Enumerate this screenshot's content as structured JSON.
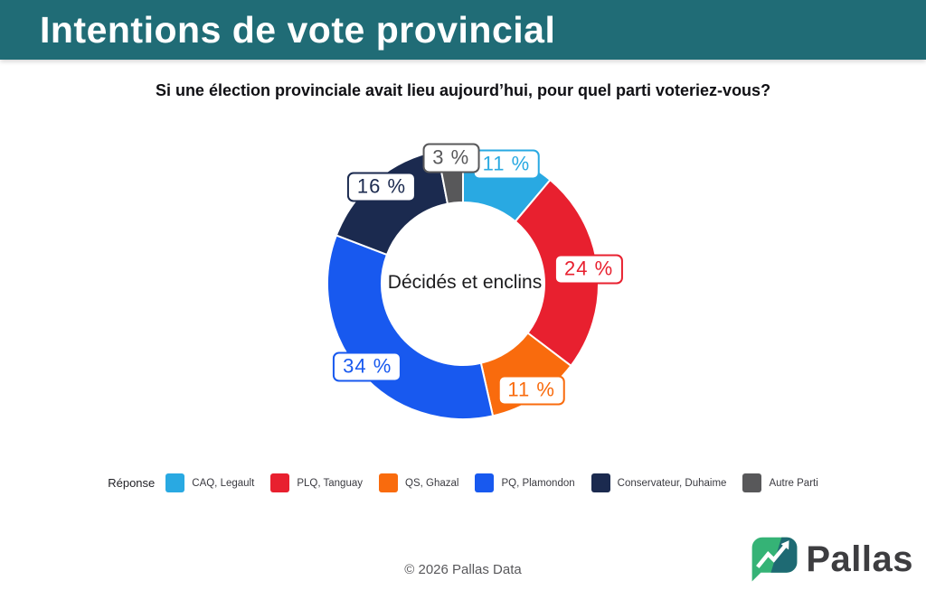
{
  "header": {
    "title": "Intentions de vote provincial",
    "bg_color": "#206C76"
  },
  "question": "Si une élection provinciale avait lieu aujourd’hui, pour quel parti voteriez-vous?",
  "chart_data": {
    "type": "pie",
    "subtype": "donut",
    "center_label": "Décidés et enclins",
    "legend_title": "Réponse",
    "legend_position": "bottom",
    "start_angle_deg": 0,
    "direction": "clockwise",
    "slices": [
      {
        "label": "CAQ, Legault",
        "value": 11,
        "display": "11 %",
        "color": "#29A9E2"
      },
      {
        "label": "PLQ, Tanguay",
        "value": 24,
        "display": "24 %",
        "color": "#E8202F"
      },
      {
        "label": "QS, Ghazal",
        "value": 11,
        "display": "11 %",
        "color": "#F96B0D"
      },
      {
        "label": "PQ, Plamondon",
        "value": 34,
        "display": "34 %",
        "color": "#1859EF"
      },
      {
        "label": "Conservateur, Duhaime",
        "value": 16,
        "display": "16 %",
        "color": "#1B2A4F"
      },
      {
        "label": "Autre Parti",
        "value": 3,
        "display": "3 %",
        "color": "#58585A"
      }
    ]
  },
  "footer": {
    "copyright": "© 2026 Pallas Data",
    "brand_name": "Pallas",
    "logo_green": "#35B376",
    "logo_teal": "#1E6A73"
  }
}
